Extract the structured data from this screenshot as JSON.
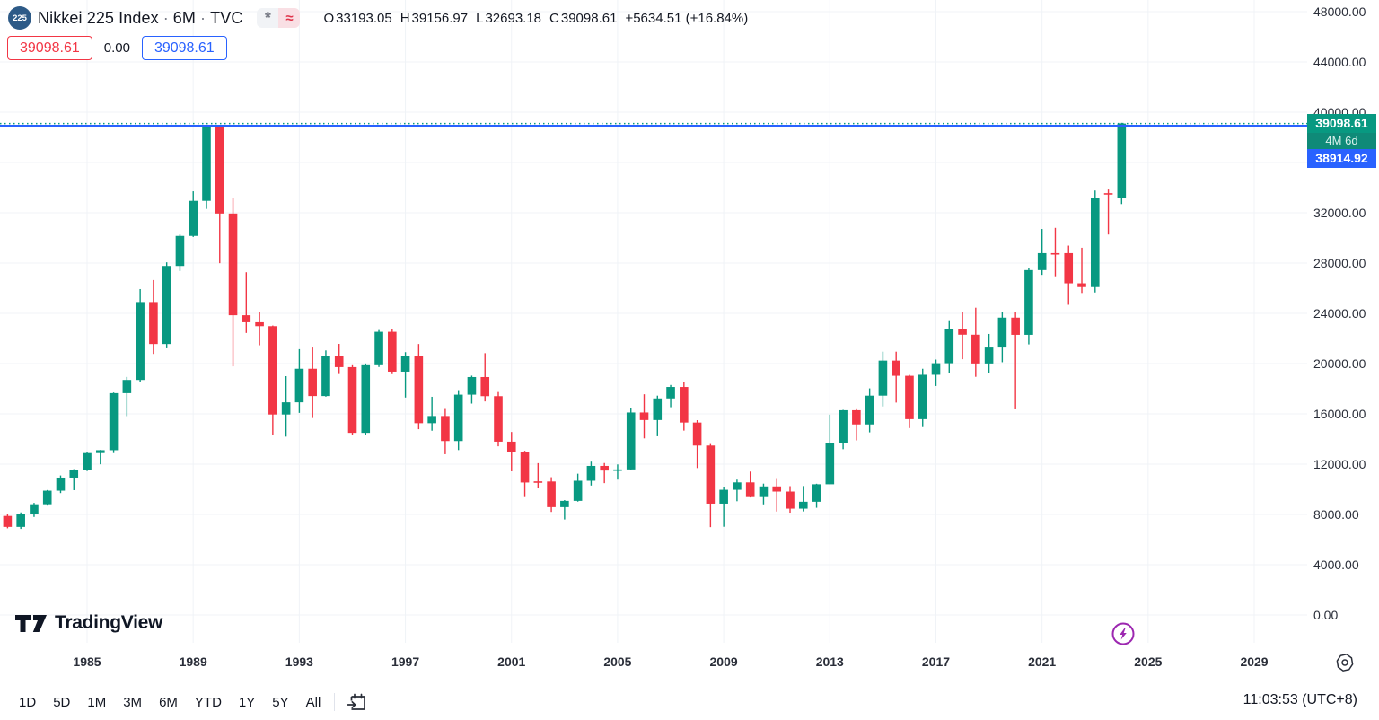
{
  "header": {
    "symbol_badge": "225",
    "title": "Nikkei 225 Index",
    "sep": "·",
    "interval": "6M",
    "exchange": "TVC",
    "flags": [
      "*",
      "≈"
    ],
    "ohlc": {
      "o_label": "O",
      "open": "33193.05",
      "h_label": "H",
      "high": "39156.97",
      "l_label": "L",
      "low": "32693.18",
      "c_label": "C",
      "close": "39098.61",
      "change": "+5634.51 (+16.84%)"
    },
    "sell_price": "39098.61",
    "spread": "0.00",
    "buy_price": "39098.61"
  },
  "price_labels": {
    "last": "39098.61",
    "countdown": "4M 6d",
    "line_price": "38914.92"
  },
  "logo": {
    "text": "TradingView"
  },
  "toolbar": {
    "ranges": [
      "1D",
      "5D",
      "1M",
      "3M",
      "6M",
      "YTD",
      "1Y",
      "5Y",
      "All"
    ],
    "clock": "11:03:53 (UTC+8)"
  },
  "colors": {
    "up": "#089981",
    "down": "#f23645",
    "line_blue": "#2962ff",
    "countdown_bg": "#0f8a78",
    "grid": "#f0f3f7",
    "accent_purple": "#9c27b0"
  },
  "chart_data": {
    "type": "candlestick",
    "title": "Nikkei 225 Index",
    "interval": "6M",
    "x_axis": {
      "tick_years": [
        "1985",
        "1989",
        "1993",
        "1997",
        "2001",
        "2005",
        "2009",
        "2013",
        "2017",
        "2021",
        "2025",
        "2029"
      ]
    },
    "y_axis": {
      "min": 0,
      "max": 48000,
      "tick_step": 4000,
      "labels": [
        "48000.00",
        "44000.00",
        "40000.00",
        "36000.00",
        "32000.00",
        "28000.00",
        "24000.00",
        "20000.00",
        "16000.00",
        "12000.00",
        "8000.00",
        "4000.00",
        "0.00"
      ]
    },
    "price_lines": [
      {
        "value": 39098.61,
        "label": "39098.61",
        "style": "dotted",
        "color": "#089981"
      },
      {
        "value": 38914.92,
        "label": "38914.92",
        "style": "solid",
        "color": "#2962ff"
      }
    ],
    "columns": [
      "period",
      "open",
      "high",
      "low",
      "close"
    ],
    "candles": [
      [
        "1982-1",
        7880,
        8000,
        6900,
        7010
      ],
      [
        "1982-2",
        7010,
        8160,
        6850,
        8020
      ],
      [
        "1983-1",
        8020,
        8920,
        7800,
        8810
      ],
      [
        "1983-2",
        8810,
        9940,
        8700,
        9890
      ],
      [
        "1984-1",
        9890,
        11100,
        9700,
        10930
      ],
      [
        "1984-2",
        10930,
        11600,
        9930,
        11540
      ],
      [
        "1985-1",
        11540,
        13000,
        11450,
        12880
      ],
      [
        "1985-2",
        12880,
        13130,
        11990,
        13110
      ],
      [
        "1986-1",
        13110,
        17700,
        12880,
        17650
      ],
      [
        "1986-2",
        17650,
        18940,
        15820,
        18700
      ],
      [
        "1987-1",
        18700,
        25930,
        18540,
        24900
      ],
      [
        "1987-2",
        24900,
        26650,
        20770,
        21560
      ],
      [
        "1988-1",
        21560,
        28060,
        21220,
        27770
      ],
      [
        "1988-2",
        27770,
        30270,
        27370,
        30160
      ],
      [
        "1989-1",
        30160,
        33710,
        30080,
        32950
      ],
      [
        "1989-2",
        32950,
        38957,
        32310,
        38916
      ],
      [
        "1990-1",
        38913,
        38951,
        27990,
        31940
      ],
      [
        "1990-2",
        31940,
        33190,
        19780,
        23850
      ],
      [
        "1991-1",
        23850,
        27270,
        22440,
        23290
      ],
      [
        "1991-2",
        23290,
        24120,
        21460,
        22980
      ],
      [
        "1992-1",
        22980,
        23030,
        14310,
        15950
      ],
      [
        "1992-2",
        15950,
        19000,
        14190,
        16920
      ],
      [
        "1993-1",
        16920,
        21150,
        16080,
        19590
      ],
      [
        "1993-2",
        19590,
        21280,
        15670,
        17420
      ],
      [
        "1994-1",
        17420,
        21050,
        17370,
        20640
      ],
      [
        "1994-2",
        20640,
        21570,
        19170,
        19720
      ],
      [
        "1995-1",
        19720,
        19870,
        14290,
        14490
      ],
      [
        "1995-2",
        14490,
        20010,
        14300,
        19870
      ],
      [
        "1996-1",
        19870,
        22670,
        19730,
        22530
      ],
      [
        "1996-2",
        22530,
        22750,
        19160,
        19360
      ],
      [
        "1997-1",
        19360,
        20910,
        17300,
        20600
      ],
      [
        "1997-2",
        20600,
        21560,
        14780,
        15260
      ],
      [
        "1998-1",
        15260,
        17360,
        14660,
        15830
      ],
      [
        "1998-2",
        15830,
        16390,
        12790,
        13840
      ],
      [
        "1999-1",
        13840,
        17890,
        13120,
        17530
      ],
      [
        "1999-2",
        17530,
        19040,
        16820,
        18930
      ],
      [
        "2000-1",
        18930,
        20830,
        16990,
        17410
      ],
      [
        "2000-2",
        17410,
        17740,
        13420,
        13790
      ],
      [
        "2001-1",
        13790,
        14560,
        11430,
        12970
      ],
      [
        "2001-2",
        12970,
        13060,
        9380,
        10540
      ],
      [
        "2002-1",
        10630,
        12080,
        10070,
        10620
      ],
      [
        "2002-2",
        10620,
        10960,
        8200,
        8580
      ],
      [
        "2003-1",
        8580,
        9140,
        7600,
        9080
      ],
      [
        "2003-2",
        9080,
        11240,
        9020,
        10680
      ],
      [
        "2004-1",
        10680,
        12200,
        10300,
        11860
      ],
      [
        "2004-2",
        11860,
        12090,
        10490,
        11490
      ],
      [
        "2005-1",
        11490,
        11980,
        10770,
        11580
      ],
      [
        "2005-2",
        11580,
        16450,
        11520,
        16110
      ],
      [
        "2006-1",
        16110,
        17560,
        14050,
        15510
      ],
      [
        "2006-2",
        15510,
        17450,
        14220,
        17230
      ],
      [
        "2007-1",
        17230,
        18300,
        16530,
        18140
      ],
      [
        "2007-2",
        18140,
        18500,
        14670,
        15310
      ],
      [
        "2008-1",
        15310,
        15500,
        11690,
        13480
      ],
      [
        "2008-2",
        13480,
        13600,
        6990,
        8860
      ],
      [
        "2009-1",
        8860,
        10170,
        7020,
        9960
      ],
      [
        "2009-2",
        9960,
        10770,
        9050,
        10550
      ],
      [
        "2010-1",
        10550,
        11410,
        9350,
        9380
      ],
      [
        "2010-2",
        9380,
        10450,
        8800,
        10230
      ],
      [
        "2011-1",
        10230,
        10890,
        8230,
        9820
      ],
      [
        "2011-2",
        9820,
        10250,
        8140,
        8460
      ],
      [
        "2012-1",
        8460,
        10260,
        8240,
        9010
      ],
      [
        "2012-2",
        9010,
        10440,
        8530,
        10400
      ],
      [
        "2013-1",
        10400,
        15940,
        10400,
        13680
      ],
      [
        "2013-2",
        13680,
        16320,
        13190,
        16290
      ],
      [
        "2014-1",
        16290,
        16370,
        13890,
        15160
      ],
      [
        "2014-2",
        15160,
        18030,
        14530,
        17450
      ],
      [
        "2015-1",
        17450,
        20950,
        16590,
        20240
      ],
      [
        "2015-2",
        20240,
        20950,
        16900,
        19030
      ],
      [
        "2016-1",
        19030,
        19100,
        14870,
        15580
      ],
      [
        "2016-2",
        15580,
        19590,
        14950,
        19110
      ],
      [
        "2017-1",
        19110,
        20320,
        18220,
        20030
      ],
      [
        "2017-2",
        20030,
        23380,
        19240,
        22760
      ],
      [
        "2018-1",
        22760,
        24130,
        20350,
        22300
      ],
      [
        "2018-2",
        22300,
        24450,
        18950,
        20010
      ],
      [
        "2019-1",
        20010,
        22360,
        19240,
        21280
      ],
      [
        "2019-2",
        21280,
        24090,
        20110,
        23660
      ],
      [
        "2020-1",
        23660,
        24120,
        16360,
        22290
      ],
      [
        "2020-2",
        22290,
        27600,
        21530,
        27440
      ],
      [
        "2021-1",
        27440,
        30710,
        27060,
        28790
      ],
      [
        "2021-2",
        28790,
        30800,
        26950,
        28790
      ],
      [
        "2022-1",
        28790,
        29390,
        24680,
        26390
      ],
      [
        "2022-2",
        26390,
        29220,
        25620,
        26090
      ],
      [
        "2023-1",
        26090,
        33770,
        25660,
        33190
      ],
      [
        "2023-2",
        33560,
        33850,
        30270,
        33460
      ],
      [
        "2024-1",
        33193.05,
        39156.97,
        32693.18,
        39098.61
      ]
    ]
  }
}
